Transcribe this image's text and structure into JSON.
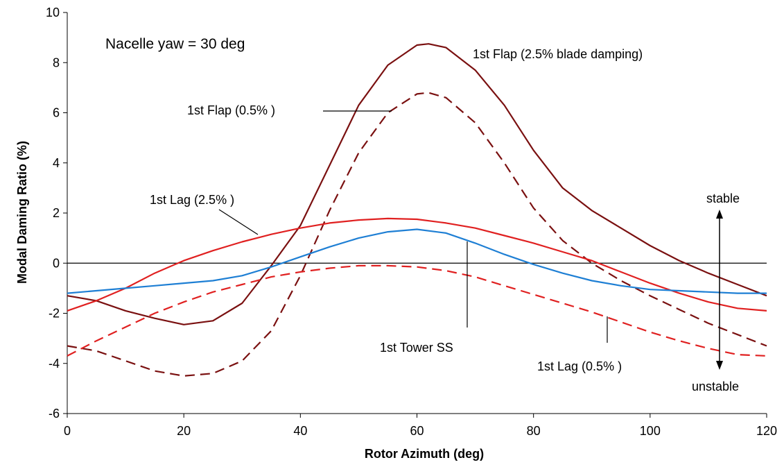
{
  "chart_data": {
    "type": "line",
    "xlabel": "Rotor Azimuth (deg)",
    "ylabel": "Modal Daming Ratio (%)",
    "xlim": [
      0,
      120
    ],
    "ylim": [
      -6,
      10
    ],
    "xticks": [
      0,
      20,
      40,
      60,
      80,
      100,
      120
    ],
    "yticks": [
      -6,
      -4,
      -2,
      0,
      2,
      4,
      6,
      8,
      10
    ],
    "grid": false,
    "legend": "none",
    "annotations": {
      "condition": "Nacelle yaw = 30 deg",
      "stable": "stable",
      "unstable": "unstable",
      "flap_25": "1st Flap (2.5% blade damping)",
      "flap_05": "1st Flap (0.5% )",
      "lag_25": "1st Lag (2.5% )",
      "tower_ss": "1st Tower SS",
      "lag_05": "1st Lag (0.5% )"
    },
    "series": [
      {
        "color": "#7a1010",
        "style": "solid",
        "x": [
          0,
          5,
          10,
          15,
          20,
          25,
          30,
          35,
          40,
          45,
          50,
          55,
          60,
          62,
          65,
          70,
          75,
          80,
          85,
          90,
          95,
          100,
          105,
          110,
          115,
          120
        ],
        "y": [
          -1.3,
          -1.5,
          -1.9,
          -2.2,
          -2.45,
          -2.3,
          -1.6,
          -0.1,
          1.5,
          3.9,
          6.3,
          7.9,
          8.7,
          8.75,
          8.6,
          7.7,
          6.3,
          4.5,
          3.0,
          2.1,
          1.4,
          0.7,
          0.1,
          -0.4,
          -0.85,
          -1.3
        ]
      },
      {
        "color": "#7a1010",
        "style": "dashed",
        "x": [
          0,
          5,
          10,
          15,
          20,
          25,
          30,
          35,
          40,
          45,
          50,
          55,
          60,
          62,
          65,
          70,
          75,
          80,
          85,
          90,
          95,
          100,
          105,
          110,
          115,
          120
        ],
        "y": [
          -3.3,
          -3.5,
          -3.9,
          -4.3,
          -4.5,
          -4.4,
          -3.9,
          -2.7,
          -0.5,
          2.1,
          4.4,
          6.0,
          6.75,
          6.8,
          6.6,
          5.6,
          4.0,
          2.2,
          0.9,
          0.0,
          -0.7,
          -1.3,
          -1.85,
          -2.4,
          -2.85,
          -3.3
        ]
      },
      {
        "color": "#e02020",
        "style": "solid",
        "x": [
          0,
          5,
          10,
          15,
          20,
          25,
          30,
          35,
          40,
          45,
          50,
          55,
          60,
          65,
          70,
          75,
          80,
          85,
          90,
          95,
          100,
          105,
          110,
          115,
          120
        ],
        "y": [
          -1.9,
          -1.5,
          -1.0,
          -0.4,
          0.1,
          0.5,
          0.85,
          1.15,
          1.4,
          1.6,
          1.72,
          1.78,
          1.75,
          1.6,
          1.4,
          1.1,
          0.8,
          0.45,
          0.1,
          -0.35,
          -0.8,
          -1.2,
          -1.55,
          -1.8,
          -1.9
        ]
      },
      {
        "color": "#1e7fd4",
        "style": "solid",
        "x": [
          0,
          5,
          10,
          15,
          20,
          25,
          30,
          35,
          40,
          45,
          50,
          55,
          60,
          65,
          70,
          75,
          80,
          85,
          90,
          95,
          100,
          105,
          110,
          115,
          120
        ],
        "y": [
          -1.2,
          -1.1,
          -1.0,
          -0.9,
          -0.8,
          -0.7,
          -0.5,
          -0.15,
          0.25,
          0.65,
          1.0,
          1.25,
          1.35,
          1.2,
          0.8,
          0.35,
          -0.05,
          -0.4,
          -0.7,
          -0.9,
          -1.05,
          -1.1,
          -1.15,
          -1.2,
          -1.2
        ]
      },
      {
        "color": "#e02020",
        "style": "dashed",
        "x": [
          0,
          5,
          10,
          15,
          20,
          25,
          30,
          35,
          40,
          45,
          50,
          55,
          60,
          65,
          70,
          75,
          80,
          85,
          90,
          95,
          100,
          105,
          110,
          115,
          120
        ],
        "y": [
          -3.7,
          -3.1,
          -2.55,
          -2.0,
          -1.55,
          -1.15,
          -0.85,
          -0.55,
          -0.35,
          -0.2,
          -0.1,
          -0.1,
          -0.15,
          -0.3,
          -0.55,
          -0.9,
          -1.25,
          -1.6,
          -1.95,
          -2.35,
          -2.75,
          -3.1,
          -3.4,
          -3.65,
          -3.7
        ]
      }
    ]
  }
}
